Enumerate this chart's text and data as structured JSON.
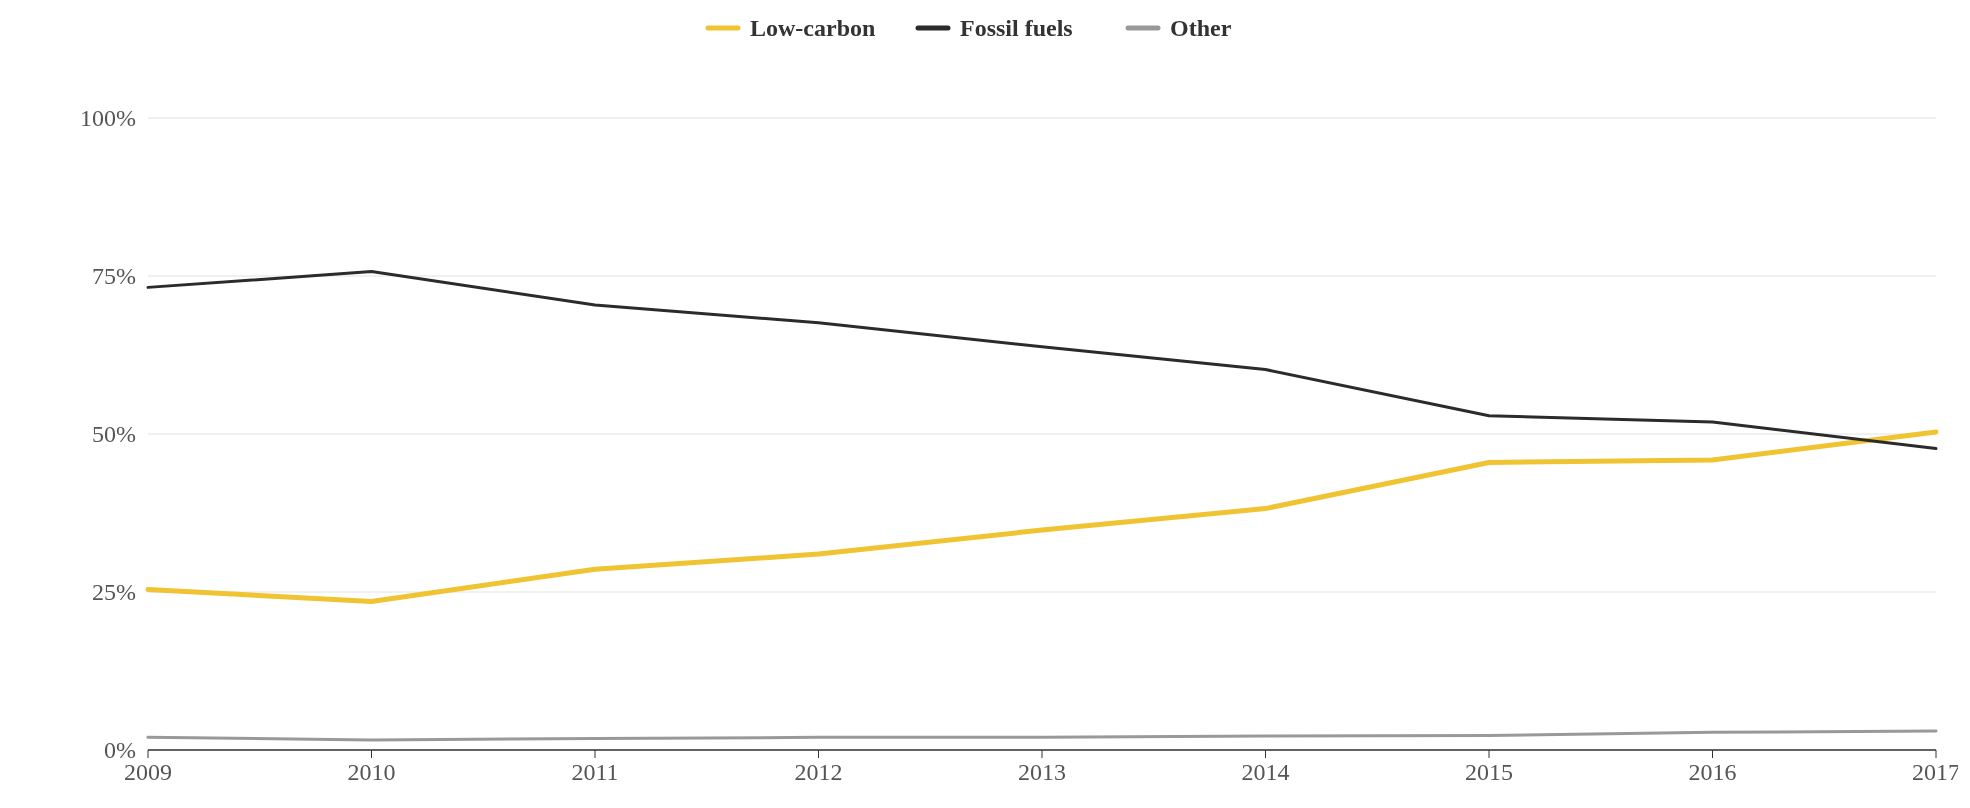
{
  "chart_data": {
    "type": "line",
    "x": [
      2009,
      2010,
      2011,
      2012,
      2013,
      2014,
      2015,
      2016,
      2017
    ],
    "series": [
      {
        "name": "Low-carbon",
        "color": "#f0c332",
        "values": [
          25.4,
          23.5,
          28.6,
          31.0,
          34.8,
          38.2,
          45.5,
          45.9,
          50.3
        ]
      },
      {
        "name": "Fossil fuels",
        "color": "#2b2b2b",
        "values": [
          73.2,
          75.7,
          70.4,
          67.6,
          63.8,
          60.2,
          52.9,
          51.9,
          47.7
        ]
      },
      {
        "name": "Other",
        "color": "#999999",
        "values": [
          2.0,
          1.6,
          1.8,
          2.0,
          2.0,
          2.2,
          2.3,
          2.8,
          3.0
        ]
      }
    ],
    "xlim": [
      2009,
      2017
    ],
    "xticks": [
      2009,
      2010,
      2011,
      2012,
      2013,
      2014,
      2015,
      2016,
      2017
    ],
    "ylim": [
      0,
      100
    ],
    "yticks": [
      {
        "value": 0,
        "label": "0%"
      },
      {
        "value": 25,
        "label": "25%"
      },
      {
        "value": 50,
        "label": "50%"
      },
      {
        "value": 75,
        "label": "75%"
      },
      {
        "value": 100,
        "label": "100%"
      }
    ],
    "grid": "y",
    "legend": "top",
    "marker": "none",
    "line_style": "solid"
  }
}
